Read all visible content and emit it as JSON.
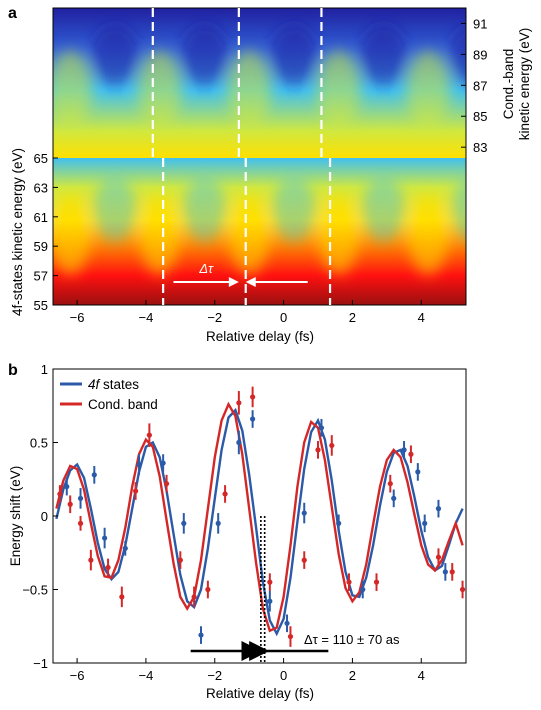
{
  "panels": [
    {
      "letter": "a",
      "chart_data": {
        "type": "heatmap",
        "xlabel": "Relative delay (fs)",
        "xlim": [
          -6.7,
          5.3
        ],
        "xticks": [
          "−6",
          "−4",
          "−2",
          "0",
          "2",
          "4"
        ],
        "xtick_values": [
          -6,
          -4,
          -2,
          0,
          2,
          4
        ],
        "ylabel_left": "4f-states kinetic energy (eV)",
        "ylim_left": [
          55,
          65
        ],
        "yticks_left": [
          "55",
          "57",
          "59",
          "61",
          "63",
          "65"
        ],
        "ylabel_right": "Cond.-band kinetic energy (eV)",
        "ylim_right": [
          82.3,
          92
        ],
        "yticks_right": [
          "83",
          "85",
          "87",
          "89",
          "91"
        ],
        "colormap": [
          "#2020a0",
          "#3060d8",
          "#40c0f0",
          "#d0e840",
          "#ffe000",
          "#ff8000",
          "#ff1010",
          "#9a1010"
        ],
        "dashed_lines_upper_fs": [
          -3.8,
          -1.3,
          1.1
        ],
        "dashed_lines_lower_fs": [
          -3.5,
          -1.1,
          1.35
        ],
        "annotation": {
          "label": "Δτ",
          "from_fs": -3.2,
          "to_fs": 0.7
        }
      }
    },
    {
      "letter": "b",
      "chart_data": {
        "type": "line",
        "xlabel": "Relative delay (fs)",
        "ylabel": "Energy shift (eV)",
        "xlim": [
          -6.7,
          5.3
        ],
        "ylim": [
          -1,
          1
        ],
        "xticks": [
          "−6",
          "−4",
          "−2",
          "0",
          "2",
          "4"
        ],
        "xtick_values": [
          -6,
          -4,
          -2,
          0,
          2,
          4
        ],
        "yticks": [
          "−1",
          "−0.5",
          "0",
          "0.5",
          "1"
        ],
        "ytick_values": [
          -1,
          -0.5,
          0,
          0.5,
          1
        ],
        "legend_position": "top-left",
        "series": [
          {
            "name": "4f states",
            "color": "#2a5aa8",
            "curve": {
              "x": [
                -6.6,
                -6.4,
                -6.2,
                -6.0,
                -5.8,
                -5.6,
                -5.4,
                -5.2,
                -5.0,
                -4.8,
                -4.6,
                -4.4,
                -4.2,
                -4.0,
                -3.8,
                -3.6,
                -3.4,
                -3.2,
                -3.0,
                -2.8,
                -2.6,
                -2.4,
                -2.2,
                -2.0,
                -1.8,
                -1.6,
                -1.4,
                -1.2,
                -1.0,
                -0.8,
                -0.6,
                -0.4,
                -0.2,
                0.0,
                0.2,
                0.4,
                0.6,
                0.8,
                1.0,
                1.2,
                1.4,
                1.6,
                1.8,
                2.0,
                2.2,
                2.4,
                2.6,
                2.8,
                3.0,
                3.2,
                3.4,
                3.6,
                3.8,
                4.0,
                4.2,
                4.4,
                4.6,
                4.8,
                5.0,
                5.2
              ],
              "y": [
                -0.02,
                0.18,
                0.31,
                0.35,
                0.26,
                0.05,
                -0.18,
                -0.36,
                -0.43,
                -0.38,
                -0.2,
                0.05,
                0.3,
                0.47,
                0.5,
                0.4,
                0.17,
                -0.12,
                -0.4,
                -0.58,
                -0.62,
                -0.5,
                -0.22,
                0.12,
                0.45,
                0.67,
                0.72,
                0.58,
                0.28,
                -0.08,
                -0.45,
                -0.71,
                -0.8,
                -0.7,
                -0.42,
                -0.04,
                0.32,
                0.57,
                0.65,
                0.52,
                0.24,
                -0.1,
                -0.38,
                -0.54,
                -0.55,
                -0.42,
                -0.2,
                0.07,
                0.3,
                0.43,
                0.45,
                0.34,
                0.13,
                -0.1,
                -0.28,
                -0.37,
                -0.34,
                -0.2,
                -0.05,
                0.05
              ]
            },
            "points": [
              {
                "x": -6.3,
                "y": 0.2,
                "err": 0.06
              },
              {
                "x": -5.9,
                "y": 0.12,
                "err": 0.07
              },
              {
                "x": -5.5,
                "y": 0.28,
                "err": 0.06
              },
              {
                "x": -5.2,
                "y": -0.15,
                "err": 0.07
              },
              {
                "x": -4.6,
                "y": -0.22,
                "err": 0.05
              },
              {
                "x": -4.2,
                "y": 0.35,
                "err": 0.07
              },
              {
                "x": -3.5,
                "y": 0.36,
                "err": 0.06
              },
              {
                "x": -2.9,
                "y": -0.05,
                "err": 0.07
              },
              {
                "x": -2.4,
                "y": -0.81,
                "err": 0.06
              },
              {
                "x": -1.9,
                "y": -0.05,
                "err": 0.07
              },
              {
                "x": -1.3,
                "y": 0.5,
                "err": 0.08
              },
              {
                "x": -0.9,
                "y": 0.66,
                "err": 0.06
              },
              {
                "x": -0.4,
                "y": -0.58,
                "err": 0.07
              },
              {
                "x": 0.1,
                "y": -0.73,
                "err": 0.06
              },
              {
                "x": 0.6,
                "y": 0.02,
                "err": 0.07
              },
              {
                "x": 1.1,
                "y": 0.6,
                "err": 0.06
              },
              {
                "x": 1.6,
                "y": -0.05,
                "err": 0.06
              },
              {
                "x": 2.3,
                "y": -0.5,
                "err": 0.06
              },
              {
                "x": 3.2,
                "y": 0.12,
                "err": 0.06
              },
              {
                "x": 3.5,
                "y": 0.45,
                "err": 0.06
              },
              {
                "x": 3.9,
                "y": 0.3,
                "err": 0.06
              },
              {
                "x": 4.1,
                "y": -0.05,
                "err": 0.06
              },
              {
                "x": 4.5,
                "y": 0.05,
                "err": 0.06
              },
              {
                "x": 4.7,
                "y": -0.38,
                "err": 0.06
              }
            ]
          },
          {
            "name": "Cond. band",
            "color": "#d42828",
            "curve": {
              "x": [
                -6.6,
                -6.4,
                -6.2,
                -6.0,
                -5.8,
                -5.6,
                -5.4,
                -5.2,
                -5.0,
                -4.8,
                -4.6,
                -4.4,
                -4.2,
                -4.0,
                -3.8,
                -3.6,
                -3.4,
                -3.2,
                -3.0,
                -2.8,
                -2.6,
                -2.4,
                -2.2,
                -2.0,
                -1.8,
                -1.6,
                -1.4,
                -1.2,
                -1.0,
                -0.8,
                -0.6,
                -0.4,
                -0.2,
                0.0,
                0.2,
                0.4,
                0.6,
                0.8,
                1.0,
                1.2,
                1.4,
                1.6,
                1.8,
                2.0,
                2.2,
                2.4,
                2.6,
                2.8,
                3.0,
                3.2,
                3.4,
                3.6,
                3.8,
                4.0,
                4.2,
                4.4,
                4.6,
                4.8,
                5.0,
                5.2
              ],
              "y": [
                0.05,
                0.24,
                0.34,
                0.32,
                0.18,
                -0.05,
                -0.27,
                -0.41,
                -0.42,
                -0.3,
                -0.08,
                0.2,
                0.42,
                0.52,
                0.47,
                0.27,
                -0.03,
                -0.32,
                -0.55,
                -0.63,
                -0.55,
                -0.3,
                0.05,
                0.4,
                0.65,
                0.76,
                0.68,
                0.42,
                0.05,
                -0.32,
                -0.63,
                -0.78,
                -0.76,
                -0.55,
                -0.2,
                0.2,
                0.5,
                0.64,
                0.6,
                0.38,
                0.06,
                -0.26,
                -0.49,
                -0.58,
                -0.52,
                -0.33,
                -0.06,
                0.2,
                0.38,
                0.45,
                0.4,
                0.23,
                0.01,
                -0.2,
                -0.33,
                -0.37,
                -0.3,
                -0.17,
                -0.05,
                -0.2
              ]
            },
            "points": [
              {
                "x": -6.5,
                "y": 0.15,
                "err": 0.06
              },
              {
                "x": -6.2,
                "y": 0.08,
                "err": 0.06
              },
              {
                "x": -5.9,
                "y": -0.05,
                "err": 0.05
              },
              {
                "x": -5.6,
                "y": -0.3,
                "err": 0.07
              },
              {
                "x": -5.1,
                "y": -0.35,
                "err": 0.06
              },
              {
                "x": -4.7,
                "y": -0.55,
                "err": 0.07
              },
              {
                "x": -4.3,
                "y": 0.17,
                "err": 0.06
              },
              {
                "x": -3.9,
                "y": 0.55,
                "err": 0.08
              },
              {
                "x": -3.4,
                "y": 0.22,
                "err": 0.06
              },
              {
                "x": -3.0,
                "y": -0.3,
                "err": 0.06
              },
              {
                "x": -2.6,
                "y": -0.55,
                "err": 0.07
              },
              {
                "x": -2.2,
                "y": -0.5,
                "err": 0.06
              },
              {
                "x": -1.7,
                "y": 0.15,
                "err": 0.06
              },
              {
                "x": -1.3,
                "y": 0.77,
                "err": 0.08
              },
              {
                "x": -0.9,
                "y": 0.81,
                "err": 0.07
              },
              {
                "x": -0.4,
                "y": -0.45,
                "err": 0.06
              },
              {
                "x": 0.2,
                "y": -0.82,
                "err": 0.07
              },
              {
                "x": 0.6,
                "y": -0.3,
                "err": 0.06
              },
              {
                "x": 1.0,
                "y": 0.45,
                "err": 0.06
              },
              {
                "x": 1.4,
                "y": 0.48,
                "err": 0.07
              },
              {
                "x": 1.9,
                "y": -0.45,
                "err": 0.06
              },
              {
                "x": 2.7,
                "y": -0.45,
                "err": 0.06
              },
              {
                "x": 3.1,
                "y": 0.22,
                "err": 0.06
              },
              {
                "x": 3.7,
                "y": 0.42,
                "err": 0.06
              },
              {
                "x": 4.5,
                "y": -0.28,
                "err": 0.06
              },
              {
                "x": 4.9,
                "y": -0.38,
                "err": 0.06
              },
              {
                "x": 5.2,
                "y": -0.5,
                "err": 0.06
              }
            ]
          }
        ],
        "markers": {
          "vertical_dotted_fs": [
            -0.66,
            -0.55
          ]
        },
        "annotation": {
          "label": "Δτ = 110 ± 70 as",
          "arrow_left_from_fs": -2.7,
          "arrow_right_to_fs": 1.3
        }
      }
    }
  ]
}
